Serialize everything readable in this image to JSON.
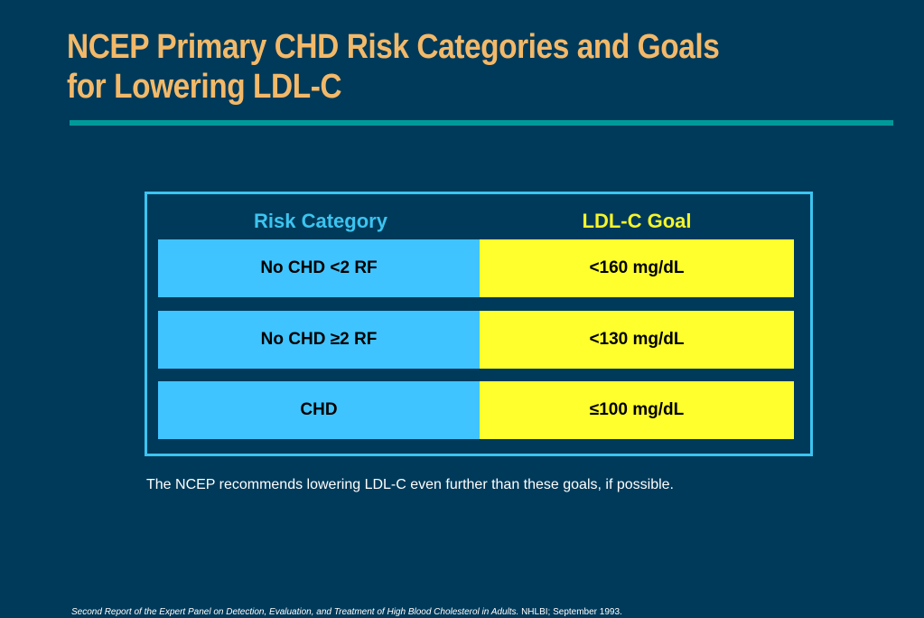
{
  "slide": {
    "title_line1": "NCEP Primary CHD Risk Categories and Goals",
    "title_line2": "for Lowering LDL-C",
    "note": "The NCEP recommends lowering LDL-C even further than these goals, if possible.",
    "source_italic": "Second Report of the Expert Panel on Detection, Evaluation, and Treatment of High Blood Cholesterol in Adults.",
    "source_rest": " NHLBI; September 1993."
  },
  "table": {
    "headers": {
      "risk": "Risk Category",
      "goal": "LDL-C Goal"
    },
    "rows": [
      {
        "risk": "No CHD <2 RF",
        "goal": "<160 mg/dL"
      },
      {
        "risk": "No CHD ≥2 RF",
        "goal": "<130 mg/dL"
      },
      {
        "risk": "CHD",
        "goal": "≤100 mg/dL"
      }
    ]
  },
  "colors": {
    "background": "#003a5a",
    "title": "#f3b969",
    "rule": "#00999a",
    "frame": "#3cc4f0",
    "risk_header": "#3cc4f0",
    "goal_header": "#f5f52a",
    "risk_cell": "#40c4ff",
    "goal_cell": "#ffff2e"
  }
}
